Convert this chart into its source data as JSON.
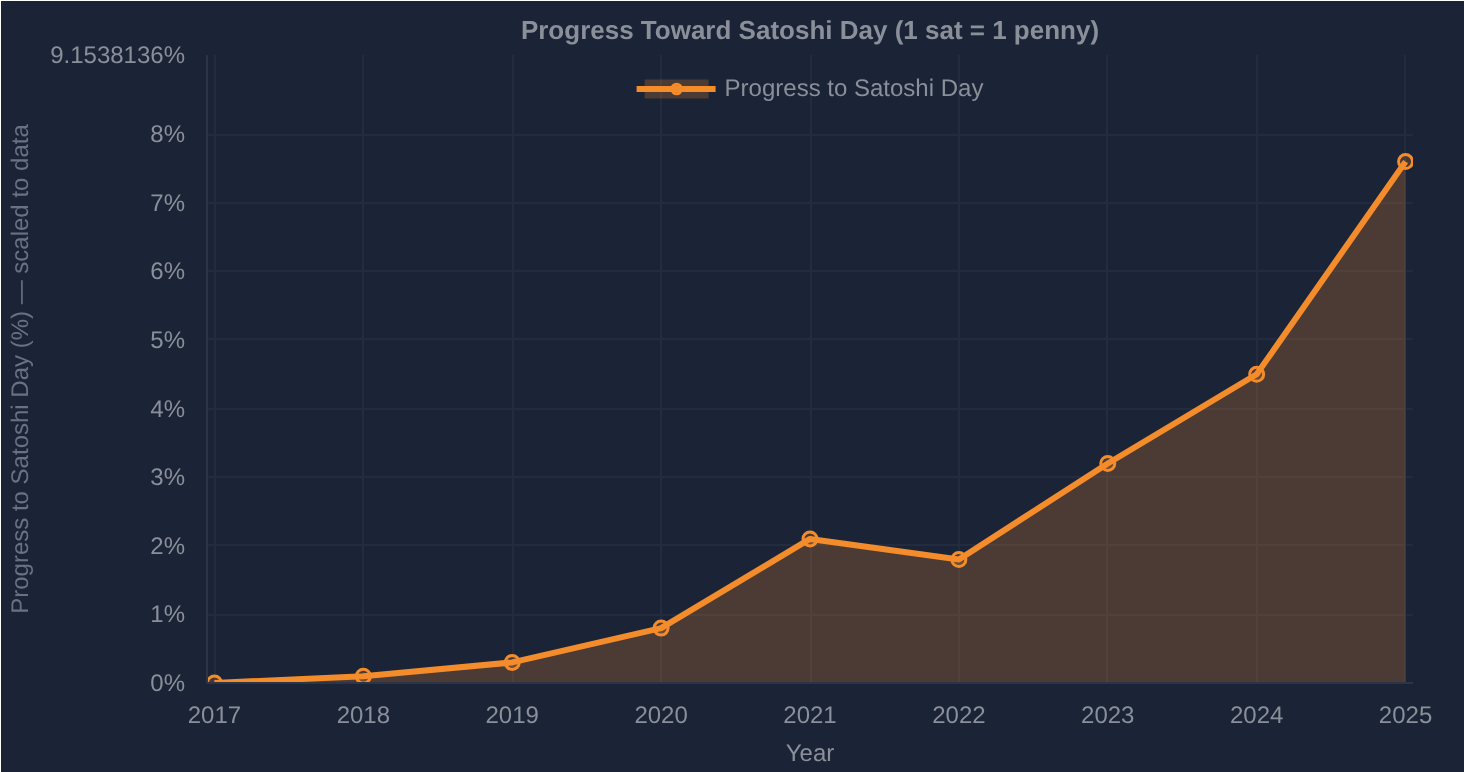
{
  "chart_data": {
    "type": "area",
    "title": "Progress Toward Satoshi Day (1 sat = 1 penny)",
    "xlabel": "Year",
    "ylabel": "Progress to Satoshi Day (%) — scaled to data",
    "categories": [
      "2017",
      "2018",
      "2019",
      "2020",
      "2021",
      "2022",
      "2023",
      "2024",
      "2025"
    ],
    "series": [
      {
        "name": "Progress to Satoshi Day",
        "color": "#f48c2c",
        "values": [
          0.0,
          0.1,
          0.3,
          0.8,
          2.1,
          1.8,
          3.2,
          4.5,
          7.6
        ]
      }
    ],
    "ylim": [
      0,
      9.1538136
    ],
    "yticks": [
      {
        "value": 0,
        "label": "0%"
      },
      {
        "value": 1,
        "label": "1%"
      },
      {
        "value": 2,
        "label": "2%"
      },
      {
        "value": 3,
        "label": "3%"
      },
      {
        "value": 4,
        "label": "4%"
      },
      {
        "value": 5,
        "label": "5%"
      },
      {
        "value": 6,
        "label": "6%"
      },
      {
        "value": 7,
        "label": "7%"
      },
      {
        "value": 8,
        "label": "8%"
      },
      {
        "value": 9.1538136,
        "label": "9.1538136%"
      }
    ],
    "grid": true,
    "legend": "top",
    "marker": "circle",
    "line_style": "solid"
  }
}
